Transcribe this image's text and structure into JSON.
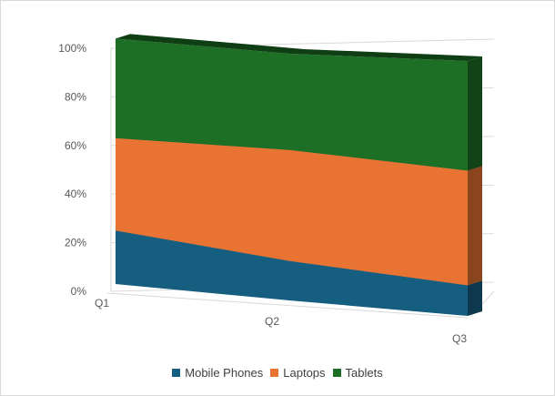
{
  "chart_data": {
    "type": "area",
    "subtype": "100% stacked 3D area",
    "categories": [
      "Q1",
      "Q2",
      "Q3"
    ],
    "series": [
      {
        "name": "Mobile Phones",
        "values": [
          22,
          16,
          12
        ],
        "color": "#165E80"
      },
      {
        "name": "Laptops",
        "values": [
          38,
          45,
          45
        ],
        "color": "#E87332"
      },
      {
        "name": "Tablets",
        "values": [
          41,
          39,
          43
        ],
        "color": "#1C6F24"
      }
    ],
    "y_tick_labels": [
      "0%",
      "20%",
      "40%",
      "60%",
      "80%",
      "100%"
    ],
    "ylim": [
      0,
      100
    ],
    "grid": true,
    "legend_position": "bottom"
  }
}
